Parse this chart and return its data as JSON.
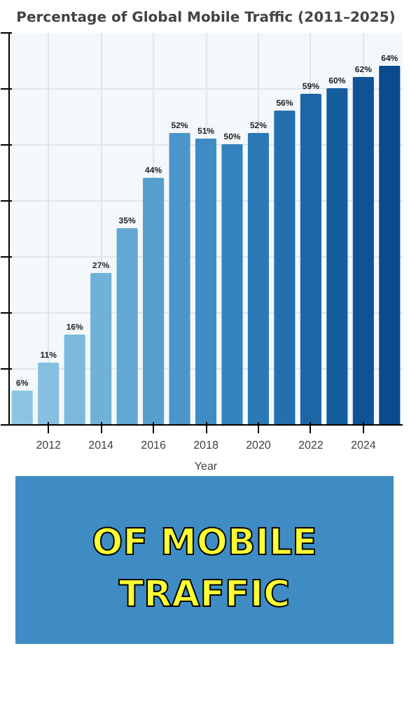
{
  "chart_data": {
    "type": "bar",
    "title": "Percentage of Global Mobile Traffic (2011–2025)",
    "xlabel": "Year",
    "x": [
      2011,
      2012,
      2013,
      2014,
      2015,
      2016,
      2017,
      2018,
      2019,
      2020,
      2021,
      2022,
      2023,
      2024,
      2025
    ],
    "values": [
      6,
      11,
      16,
      27,
      35,
      44,
      52,
      51,
      50,
      52,
      56,
      59,
      60,
      62,
      64
    ],
    "colors": [
      "#8ec4e2",
      "#86bfe0",
      "#7cb9dd",
      "#6fb1d9",
      "#62a8d4",
      "#559fcf",
      "#4a96ca",
      "#3f8cc4",
      "#3583be",
      "#2b79b6",
      "#2370ae",
      "#1c66a6",
      "#165d9e",
      "#105395",
      "#0b4a8c"
    ],
    "value_labels": [
      "6%",
      "11%",
      "16%",
      "27%",
      "35%",
      "44%",
      "52%",
      "51%",
      "50%",
      "52%",
      "56%",
      "59%",
      "60%",
      "62%",
      "64%"
    ],
    "xlim": [
      2010.5,
      2025.5
    ],
    "xticks": [
      2012,
      2014,
      2016,
      2018,
      2020,
      2022,
      2024
    ],
    "ylim": [
      0,
      70
    ],
    "yticks": [
      {
        "value": 0,
        "label": null
      },
      {
        "value": 10,
        "label": null
      },
      {
        "value": 20,
        "label": null
      },
      {
        "value": 30,
        "label": null
      },
      {
        "value": 40,
        "label": null
      },
      {
        "value": 50,
        "label": null
      },
      {
        "value": 60,
        "label": null
      },
      {
        "value": 70,
        "label": null
      }
    ],
    "tick_labels": "x",
    "grid": true,
    "annotations": [
      "OF MOBILE TRAFFIC"
    ]
  }
}
